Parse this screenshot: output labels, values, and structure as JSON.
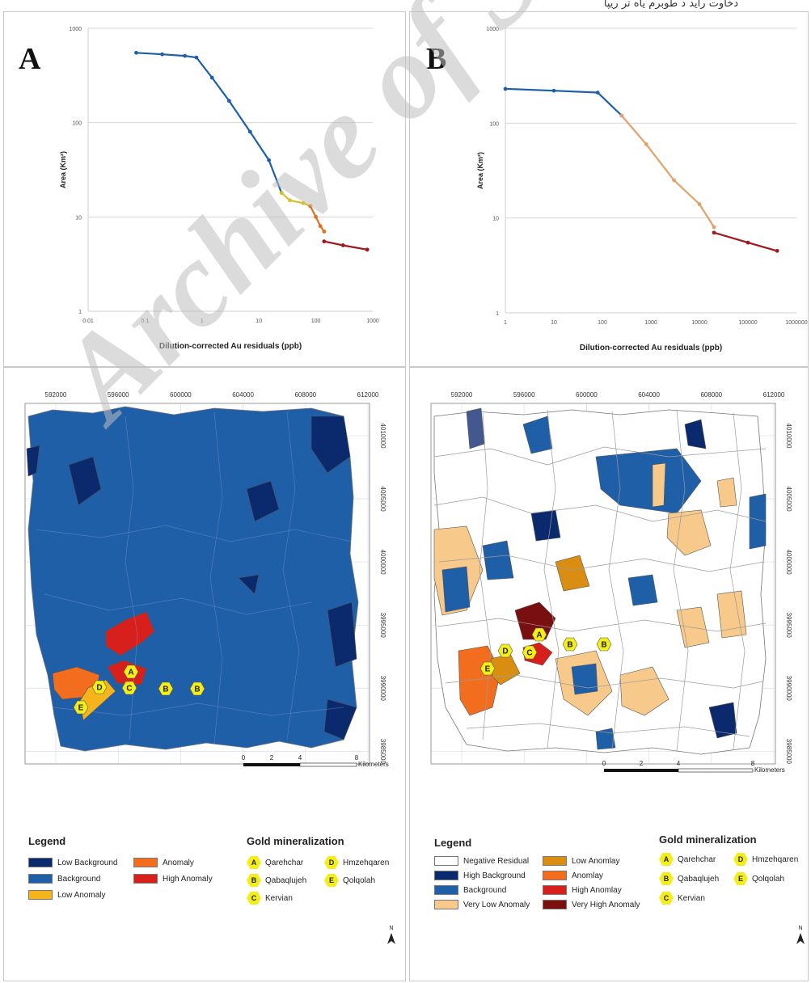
{
  "header_text": "دخاوت راید د طوبرم یاه تر ریپآ",
  "watermark": "Archive of SID",
  "panel_a": {
    "letter": "A",
    "chart_data": {
      "type": "line",
      "xlabel": "Dilution-corrected Au residuals (ppb)",
      "ylabel": "Area (Km²)",
      "x_scale": "log",
      "y_scale": "log",
      "xlim": [
        0.01,
        1000
      ],
      "ylim": [
        1,
        1000
      ],
      "x_ticks": [
        "0.01",
        "0.1",
        "1",
        "10",
        "100",
        "1000"
      ],
      "y_ticks": [
        "1",
        "10",
        "100",
        "1000"
      ],
      "grid": "horizontal",
      "series": [
        {
          "color": "#1f5fa8",
          "points": [
            [
              0.07,
              550
            ],
            [
              0.2,
              530
            ],
            [
              0.5,
              510
            ],
            [
              0.8,
              490
            ],
            [
              1.5,
              300
            ],
            [
              3,
              170
            ],
            [
              7,
              80
            ],
            [
              15,
              40
            ],
            [
              25,
              18
            ]
          ]
        },
        {
          "color": "#d6c12a",
          "points": [
            [
              25,
              18
            ],
            [
              35,
              15
            ],
            [
              60,
              14
            ],
            [
              80,
              13
            ]
          ]
        },
        {
          "color": "#e07020",
          "points": [
            [
              80,
              13
            ],
            [
              100,
              10
            ],
            [
              120,
              8
            ],
            [
              140,
              7
            ]
          ]
        },
        {
          "color": "#a01818",
          "points": [
            [
              140,
              5.5
            ],
            [
              300,
              5
            ],
            [
              800,
              4.5
            ]
          ]
        }
      ]
    }
  },
  "panel_b": {
    "letter": "B",
    "chart_data": {
      "type": "line",
      "xlabel": "Dilution-corrected Au residuals (ppb)",
      "ylabel": "Area (Km²)",
      "x_scale": "log",
      "y_scale": "log",
      "xlim": [
        1,
        1000000
      ],
      "ylim": [
        1,
        1000
      ],
      "x_ticks": [
        "1",
        "10",
        "100",
        "1000",
        "10000",
        "100000",
        "1000000"
      ],
      "y_ticks": [
        "1",
        "10",
        "100",
        "1000"
      ],
      "grid": "horizontal",
      "series": [
        {
          "color": "#1f5fa8",
          "points": [
            [
              1,
              230
            ],
            [
              10,
              220
            ],
            [
              80,
              210
            ],
            [
              250,
              120
            ]
          ]
        },
        {
          "color": "#e0a26a",
          "points": [
            [
              250,
              120
            ],
            [
              800,
              60
            ],
            [
              3000,
              25
            ],
            [
              10000,
              14
            ],
            [
              20000,
              8
            ]
          ]
        },
        {
          "color": "#a01818",
          "points": [
            [
              20000,
              7
            ],
            [
              100000,
              5.5
            ],
            [
              400000,
              4.5
            ]
          ]
        }
      ]
    }
  },
  "map_a": {
    "x_ticks": [
      "592000",
      "596000",
      "600000",
      "604000",
      "608000",
      "612000"
    ],
    "y_ticks": [
      "4010000",
      "4005000",
      "4000000",
      "3995000",
      "3990000",
      "3985000"
    ],
    "scale_ticks": [
      "0",
      "2",
      "4",
      "8"
    ],
    "scale_unit": "Kilometers",
    "sites": [
      {
        "label": "A"
      },
      {
        "label": "B"
      },
      {
        "label": "B"
      },
      {
        "label": "C"
      },
      {
        "label": "D"
      },
      {
        "label": "E"
      }
    ]
  },
  "map_b": {
    "x_ticks": [
      "592000",
      "596000",
      "600000",
      "604000",
      "608000",
      "612000"
    ],
    "y_ticks": [
      "4010000",
      "4005000",
      "4000000",
      "3995000",
      "3990000",
      "3985000"
    ],
    "scale_ticks": [
      "0",
      "2",
      "4",
      "8"
    ],
    "scale_unit": "Kilometers",
    "sites": [
      {
        "label": "A"
      },
      {
        "label": "B"
      },
      {
        "label": "B"
      },
      {
        "label": "C"
      },
      {
        "label": "D"
      },
      {
        "label": "E"
      }
    ]
  },
  "legend_a": {
    "title": "Legend",
    "items": [
      {
        "label": "Low Background",
        "color": "#0b2a6e"
      },
      {
        "label": "Anomaly",
        "color": "#f26d1d"
      },
      {
        "label": "Background",
        "color": "#1f5fa8"
      },
      {
        "label": "High Anomaly",
        "color": "#d7201c"
      },
      {
        "label": "Low Anomaly",
        "color": "#f5b41b"
      }
    ],
    "gold_title": "Gold mineralization",
    "gold": [
      {
        "letter": "A",
        "name": "Qarehchar"
      },
      {
        "letter": "D",
        "name": "Hmzehqaren"
      },
      {
        "letter": "B",
        "name": "Qabaqlujeh"
      },
      {
        "letter": "E",
        "name": "Qolqolah"
      },
      {
        "letter": "C",
        "name": "Kervian"
      }
    ],
    "north": "N"
  },
  "legend_b": {
    "title": "Legend",
    "items": [
      {
        "label": "Negative Residual",
        "color": "#ffffff"
      },
      {
        "label": "Low Anomlay",
        "color": "#d98e12"
      },
      {
        "label": "High Background",
        "color": "#0b2a6e"
      },
      {
        "label": "Anomlay",
        "color": "#f26d1d"
      },
      {
        "label": "Background",
        "color": "#1f5fa8"
      },
      {
        "label": "High Anomlay",
        "color": "#d7201c"
      },
      {
        "label": "Very Low Anomaly",
        "color": "#f7c98a"
      },
      {
        "label": "Very High Anomaly",
        "color": "#7a0f0f"
      }
    ],
    "gold_title": "Gold mineralization",
    "gold": [
      {
        "letter": "A",
        "name": "Qarehchar"
      },
      {
        "letter": "D",
        "name": "Hmzehqaren"
      },
      {
        "letter": "B",
        "name": "Qabaqlujeh"
      },
      {
        "letter": "E",
        "name": "Qolqolah"
      },
      {
        "letter": "C",
        "name": "Kervian"
      }
    ],
    "north": "N"
  }
}
